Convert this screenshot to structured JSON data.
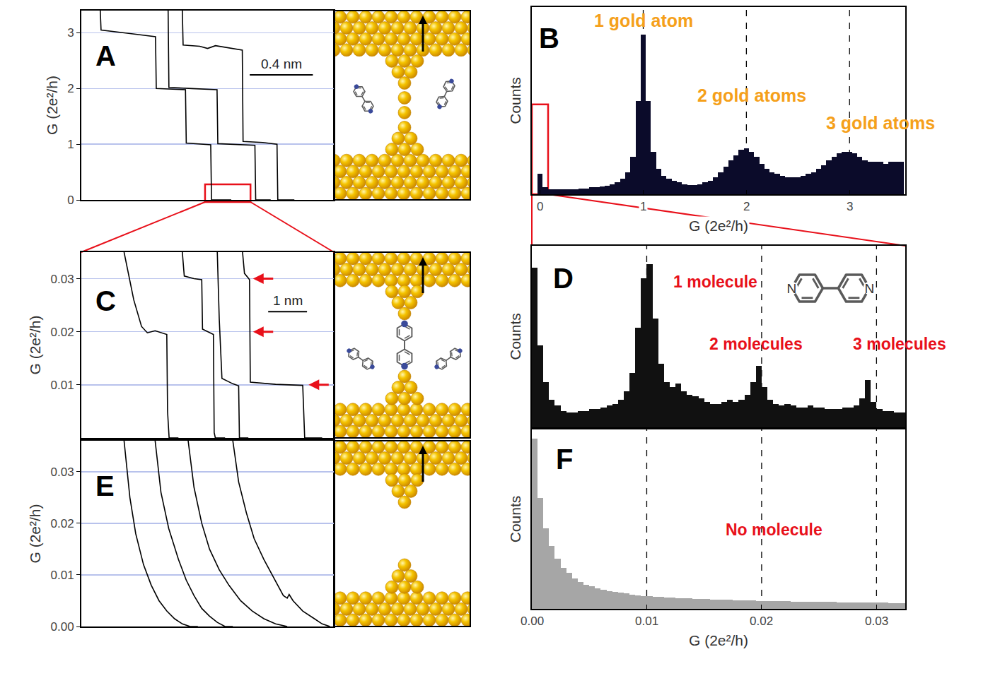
{
  "chart_data": [
    {
      "label": "A",
      "type": "line",
      "ylabel": "G (2e²/h)",
      "color": "#000000",
      "xlim": [
        0,
        1.6
      ],
      "ylim": [
        0,
        3.4
      ],
      "yticks": [
        0,
        1,
        2,
        3
      ],
      "tick_labels": "y",
      "grid": true,
      "scale_bar": {
        "length": 0.4,
        "label": "0.4 nm"
      },
      "series": [
        {
          "x": [
            0.12,
            0.125,
            0.3,
            0.47,
            0.475,
            0.66,
            0.665,
            0.82,
            0.825,
            0.95
          ],
          "values": [
            3.4,
            3.05,
            2.99,
            2.93,
            2.0,
            1.98,
            1.02,
            0.99,
            0,
            0
          ]
        },
        {
          "x": [
            0.64,
            0.645,
            0.75,
            0.8,
            0.85,
            1.0,
            1.02,
            1.025,
            1.15,
            1.24,
            1.245,
            1.35
          ],
          "values": [
            3.4,
            2.78,
            2.76,
            2.72,
            2.77,
            2.7,
            2.69,
            1.05,
            1.03,
            1.0,
            0,
            0
          ]
        },
        {
          "x": [
            0.55,
            0.555,
            0.7,
            0.86,
            0.865,
            1.05,
            1.1,
            1.105,
            1.2
          ],
          "values": [
            3.4,
            2.02,
            2.0,
            1.98,
            1.01,
            0.99,
            0.98,
            0,
            0
          ]
        }
      ]
    },
    {
      "label": "B",
      "type": "histogram",
      "xlabel": "G (2e²/h)",
      "ylabel": "Counts",
      "color": "#0b0b2a",
      "xlim": [
        -0.08,
        3.54
      ],
      "ylim": [
        0,
        110
      ],
      "xticks": [
        0,
        1,
        2,
        3
      ],
      "tick_labels": "x",
      "reference_lines": [
        1,
        2,
        3
      ],
      "bins": [
        -0.025,
        0.025,
        0.075,
        0.125,
        0.175,
        0.225,
        0.275,
        0.325,
        0.375,
        0.425,
        0.475,
        0.525,
        0.575,
        0.625,
        0.675,
        0.725,
        0.775,
        0.825,
        0.875,
        0.925,
        0.975,
        1.025,
        1.075,
        1.125,
        1.175,
        1.225,
        1.275,
        1.325,
        1.375,
        1.425,
        1.475,
        1.525,
        1.575,
        1.625,
        1.675,
        1.725,
        1.775,
        1.825,
        1.875,
        1.925,
        1.975,
        2.025,
        2.075,
        2.125,
        2.175,
        2.225,
        2.275,
        2.325,
        2.375,
        2.425,
        2.475,
        2.525,
        2.575,
        2.625,
        2.675,
        2.725,
        2.775,
        2.825,
        2.875,
        2.925,
        2.975,
        3.025,
        3.075,
        3.125,
        3.175,
        3.225,
        3.275,
        3.325,
        3.375,
        3.425,
        3.475,
        3.525
      ],
      "values": [
        12,
        4,
        3,
        3,
        3,
        3,
        3,
        3,
        3.5,
        3.5,
        4,
        4,
        4.5,
        5,
        6,
        7,
        9,
        13,
        22,
        55,
        94,
        55,
        25,
        15,
        11,
        9,
        8,
        7,
        6,
        5.5,
        5.5,
        6,
        7,
        8,
        10,
        13,
        16,
        20,
        23,
        26,
        27,
        25,
        22,
        18,
        15,
        13,
        12,
        11,
        10,
        10,
        10,
        11,
        12,
        13,
        15,
        17,
        20,
        22,
        24,
        25,
        25,
        24,
        22,
        20,
        19,
        19,
        19,
        18,
        19,
        19,
        19
      ],
      "annotations": [
        {
          "text": "1 gold atom",
          "x": 1.0,
          "y": 102,
          "color": "#f5a01a"
        },
        {
          "text": "2 gold atoms",
          "x": 2.05,
          "y": 58,
          "color": "#f5a01a"
        },
        {
          "text": "3 gold atoms",
          "x": 3.3,
          "y": 42,
          "color": "#f5a01a"
        }
      ]
    },
    {
      "label": "C",
      "type": "line",
      "ylabel": "G (2e²/h)",
      "color": "#000000",
      "xlim": [
        0,
        6.5
      ],
      "ylim": [
        0,
        0.035
      ],
      "yticks": [
        0.01,
        0.02,
        0.03
      ],
      "tick_labels": "y",
      "grid": true,
      "scale_bar": {
        "length": 1,
        "label": "1 nm"
      },
      "arrows": [
        {
          "x": 4.42,
          "y": 0.03,
          "color": "#e8101a"
        },
        {
          "x": 4.42,
          "y": 0.02,
          "color": "#e8101a"
        },
        {
          "x": 5.85,
          "y": 0.01,
          "color": "#e8101a"
        }
      ],
      "series": [
        {
          "x": [
            1.1,
            1.35,
            1.55,
            1.7,
            1.9,
            2.2,
            2.22,
            2.26,
            2.5
          ],
          "values": [
            0.035,
            0.026,
            0.021,
            0.0198,
            0.0202,
            0.0195,
            0.005,
            0,
            0
          ]
        },
        {
          "x": [
            2.6,
            2.65,
            2.9,
            3.1,
            3.12,
            3.4,
            3.42,
            3.45,
            3.7
          ],
          "values": [
            0.035,
            0.0305,
            0.03,
            0.0298,
            0.0205,
            0.0195,
            0.001,
            0,
            0
          ]
        },
        {
          "x": [
            3.5,
            3.55,
            3.62,
            3.9,
            4.05,
            4.07,
            4.3
          ],
          "values": [
            0.035,
            0.0225,
            0.0112,
            0.0102,
            0.0098,
            0,
            0
          ]
        },
        {
          "x": [
            4.15,
            4.2,
            4.3,
            4.33,
            4.35,
            5.0,
            5.7,
            5.75,
            6.2
          ],
          "values": [
            0.035,
            0.031,
            0.0301,
            0.0298,
            0.0105,
            0.0101,
            0.0099,
            0,
            0
          ]
        }
      ]
    },
    {
      "label": "D",
      "type": "histogram",
      "ylabel": "Counts",
      "color": "#111111",
      "xlim": [
        0,
        0.0325
      ],
      "ylim": [
        0,
        100
      ],
      "tick_labels": false,
      "reference_lines": [
        0.01,
        0.02,
        0.03
      ],
      "structure_labels": [
        "N",
        "N"
      ],
      "bins": [
        0,
        0.0005,
        0.001,
        0.0015,
        0.002,
        0.0025,
        0.003,
        0.0035,
        0.004,
        0.0045,
        0.005,
        0.0055,
        0.006,
        0.0065,
        0.007,
        0.0075,
        0.008,
        0.0085,
        0.009,
        0.0095,
        0.01,
        0.0105,
        0.011,
        0.0115,
        0.012,
        0.0125,
        0.013,
        0.0135,
        0.014,
        0.0145,
        0.015,
        0.0155,
        0.016,
        0.0165,
        0.017,
        0.0175,
        0.018,
        0.0185,
        0.019,
        0.0195,
        0.02,
        0.0205,
        0.021,
        0.0215,
        0.022,
        0.0225,
        0.023,
        0.0235,
        0.024,
        0.0245,
        0.025,
        0.0255,
        0.026,
        0.0265,
        0.027,
        0.0275,
        0.028,
        0.0285,
        0.029,
        0.0295,
        0.03,
        0.0305,
        0.031,
        0.0315,
        0.032,
        0.0325
      ],
      "values": [
        88,
        45,
        25,
        15,
        12,
        9,
        8,
        8,
        9,
        9,
        10,
        10,
        11,
        12,
        13,
        15,
        20,
        30,
        55,
        82,
        90,
        60,
        35,
        25,
        22,
        24,
        20,
        18,
        17,
        16,
        14,
        13,
        13,
        14,
        15,
        14,
        15,
        18,
        25,
        34,
        22,
        15,
        13,
        12,
        13,
        12,
        11,
        11,
        12,
        11,
        11,
        10,
        10,
        10,
        11,
        11,
        12,
        16,
        26,
        14,
        10,
        9,
        9,
        8,
        8
      ],
      "annotations": [
        {
          "text": "1 molecule",
          "x": 0.016,
          "y": 80,
          "color": "#e8101a"
        },
        {
          "text": "2 molecules",
          "x": 0.0195,
          "y": 46,
          "color": "#e8101a"
        },
        {
          "text": "3 molecules",
          "x": 0.032,
          "y": 46,
          "color": "#e8101a"
        }
      ]
    },
    {
      "label": "E",
      "type": "line",
      "ylabel": "G (2e²/h)",
      "color": "#000000",
      "xlim": [
        0,
        6.5
      ],
      "ylim": [
        0,
        0.036
      ],
      "yticks": [
        {
          "value": 0,
          "label": "0.00"
        },
        0.01,
        0.02,
        0.03
      ],
      "tick_labels": "y",
      "grid": true,
      "series": [
        {
          "x": [
            1.1,
            1.25,
            1.4,
            1.6,
            1.8,
            2.0,
            2.2,
            2.4,
            2.6,
            2.8,
            3.0
          ],
          "values": [
            0.036,
            0.025,
            0.018,
            0.012,
            0.008,
            0.005,
            0.003,
            0.0015,
            0.0005,
            0,
            0
          ]
        },
        {
          "x": [
            1.9,
            2.05,
            2.25,
            2.5,
            2.7,
            2.9,
            3.1,
            3.3,
            3.5,
            3.7,
            3.9
          ],
          "values": [
            0.036,
            0.026,
            0.019,
            0.013,
            0.009,
            0.006,
            0.0035,
            0.002,
            0.0008,
            0,
            0
          ]
        },
        {
          "x": [
            2.75,
            2.9,
            3.1,
            3.3,
            3.55,
            3.8,
            4.1,
            4.4,
            4.7,
            5.0,
            5.3
          ],
          "values": [
            0.036,
            0.027,
            0.02,
            0.015,
            0.011,
            0.008,
            0.005,
            0.003,
            0.0015,
            0.0005,
            0
          ]
        },
        {
          "x": [
            3.9,
            4.05,
            4.25,
            4.45,
            4.7,
            4.95,
            5.1,
            5.2,
            5.3,
            5.35,
            5.45,
            5.7,
            6.0,
            6.2,
            6.4
          ],
          "values": [
            0.036,
            0.028,
            0.022,
            0.017,
            0.013,
            0.0095,
            0.0075,
            0.006,
            0.0055,
            0.0062,
            0.005,
            0.003,
            0.0015,
            0.0005,
            0
          ]
        }
      ]
    },
    {
      "label": "F",
      "type": "histogram",
      "xlabel": "G (2e²/h)",
      "ylabel": "Counts",
      "color": "#a6a6a6",
      "xlim": [
        0,
        0.0325
      ],
      "ylim": [
        0,
        100
      ],
      "xticks": [
        {
          "value": 0,
          "label": "0.00"
        },
        0.01,
        0.02,
        0.03
      ],
      "tick_labels": "x",
      "reference_lines": [
        0.01,
        0.02,
        0.03
      ],
      "bins": [
        0,
        0.0005,
        0.001,
        0.0015,
        0.002,
        0.0025,
        0.003,
        0.0035,
        0.004,
        0.0045,
        0.005,
        0.0055,
        0.006,
        0.0065,
        0.007,
        0.0075,
        0.008,
        0.0085,
        0.009,
        0.0095,
        0.01,
        0.0105,
        0.011,
        0.0115,
        0.012,
        0.0125,
        0.013,
        0.0135,
        0.014,
        0.0145,
        0.015,
        0.0155,
        0.016,
        0.0165,
        0.017,
        0.0175,
        0.018,
        0.0185,
        0.019,
        0.0195,
        0.02,
        0.0205,
        0.021,
        0.0215,
        0.022,
        0.0225,
        0.023,
        0.0235,
        0.024,
        0.0245,
        0.025,
        0.0255,
        0.026,
        0.0265,
        0.027,
        0.0275,
        0.028,
        0.0285,
        0.029,
        0.0295,
        0.03,
        0.0305,
        0.031,
        0.0315,
        0.032,
        0.0325
      ],
      "values": [
        95,
        62,
        45,
        35,
        28,
        23,
        20,
        17,
        15,
        13.5,
        12.5,
        11.5,
        10.5,
        10,
        9.5,
        9,
        8.5,
        8,
        7.5,
        7.2,
        7,
        6.8,
        6.6,
        6.4,
        6.2,
        6,
        5.9,
        5.8,
        5.6,
        5.5,
        5.4,
        5.3,
        5.2,
        5.1,
        5,
        4.9,
        4.8,
        4.7,
        4.6,
        4.5,
        4.5,
        4.4,
        4.3,
        4.3,
        4.2,
        4.1,
        4.1,
        4,
        4,
        3.9,
        3.9,
        3.8,
        3.8,
        3.7,
        3.7,
        3.6,
        3.6,
        3.5,
        3.5,
        3.5,
        3.4,
        3.4,
        3.3,
        3.3,
        3.2
      ],
      "annotations": [
        {
          "text": "No molecule",
          "x": 0.0211,
          "y": 44,
          "color": "#e8101a"
        }
      ]
    }
  ]
}
